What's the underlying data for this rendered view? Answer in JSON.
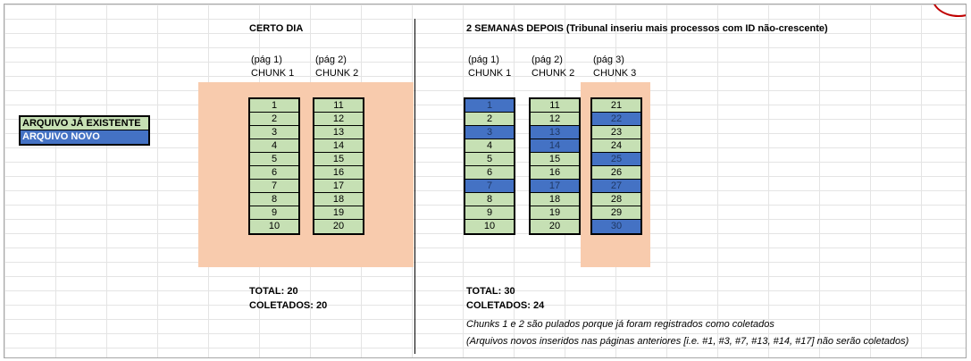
{
  "legend": {
    "existing_label": "ARQUIVO JÁ EXISTENTE",
    "new_label": "ARQUIVO NOVO"
  },
  "left": {
    "title": "CERTO DIA",
    "columns": [
      {
        "page": "(pág 1)",
        "chunk": "CHUNK 1",
        "cells": [
          {
            "v": "1"
          },
          {
            "v": "2"
          },
          {
            "v": "3"
          },
          {
            "v": "4"
          },
          {
            "v": "5"
          },
          {
            "v": "6"
          },
          {
            "v": "7"
          },
          {
            "v": "8"
          },
          {
            "v": "9"
          },
          {
            "v": "10"
          }
        ]
      },
      {
        "page": "(pág 2)",
        "chunk": "CHUNK 2",
        "cells": [
          {
            "v": "11"
          },
          {
            "v": "12"
          },
          {
            "v": "13"
          },
          {
            "v": "14"
          },
          {
            "v": "15"
          },
          {
            "v": "16"
          },
          {
            "v": "17"
          },
          {
            "v": "18"
          },
          {
            "v": "19"
          },
          {
            "v": "20"
          }
        ]
      }
    ],
    "total": "TOTAL: 20",
    "collected": "COLETADOS: 20"
  },
  "right": {
    "title": "2 SEMANAS DEPOIS (Tribunal inseriu mais processos com ID não-crescente)",
    "columns": [
      {
        "page": "(pág 1)",
        "chunk": "CHUNK 1",
        "cells": [
          {
            "v": "1",
            "new": true
          },
          {
            "v": "2"
          },
          {
            "v": "3",
            "new": true
          },
          {
            "v": "4"
          },
          {
            "v": "5"
          },
          {
            "v": "6"
          },
          {
            "v": "7",
            "new": true
          },
          {
            "v": "8"
          },
          {
            "v": "9"
          },
          {
            "v": "10"
          }
        ]
      },
      {
        "page": "(pág 2)",
        "chunk": "CHUNK 2",
        "cells": [
          {
            "v": "11"
          },
          {
            "v": "12"
          },
          {
            "v": "13",
            "new": true
          },
          {
            "v": "14",
            "new": true
          },
          {
            "v": "15"
          },
          {
            "v": "16"
          },
          {
            "v": "17",
            "new": true
          },
          {
            "v": "18"
          },
          {
            "v": "19"
          },
          {
            "v": "20"
          }
        ]
      },
      {
        "page": "(pág 3)",
        "chunk": "CHUNK 3",
        "cells": [
          {
            "v": "21"
          },
          {
            "v": "22",
            "new": true
          },
          {
            "v": "23"
          },
          {
            "v": "24"
          },
          {
            "v": "25",
            "new": true
          },
          {
            "v": "26"
          },
          {
            "v": "27",
            "new": true
          },
          {
            "v": "28"
          },
          {
            "v": "29"
          },
          {
            "v": "30",
            "new": true
          }
        ]
      }
    ],
    "total": "TOTAL: 30",
    "collected": "COLETADOS: 24",
    "note1": "Chunks 1 e 2 são pulados porque já foram registrados como coletados",
    "note2": "(Arquivos novos inseridos nas páginas anteriores [i.e. #1, #3, #7, #13, #14, #17] não serão coletados)"
  },
  "colors": {
    "existing": "#c6e0b4",
    "new": "#4472c4",
    "highlight": "#f8cbad"
  }
}
